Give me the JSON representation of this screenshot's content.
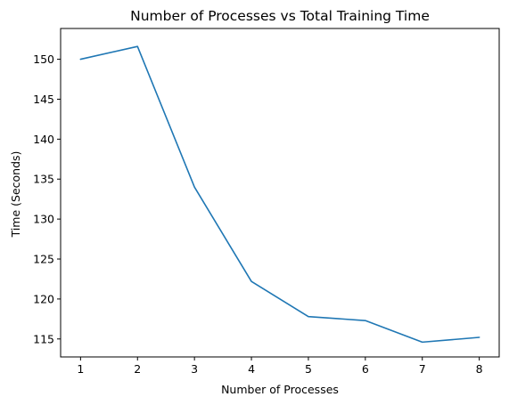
{
  "chart_data": {
    "type": "line",
    "title": "Number of Processes vs Total Training Time",
    "xlabel": "Number of Processes",
    "ylabel": "Time (Seconds)",
    "x": [
      1,
      2,
      3,
      4,
      5,
      6,
      7,
      8
    ],
    "series": [
      {
        "values": [
          150.0,
          151.6,
          134.0,
          122.2,
          117.8,
          117.3,
          114.6,
          115.2
        ],
        "color": "#1f77b4"
      }
    ],
    "xlim": [
      0.65,
      8.35
    ],
    "ylim": [
      112.75,
      153.85
    ],
    "xticks": [
      1,
      2,
      3,
      4,
      5,
      6,
      7,
      8
    ],
    "yticks": [
      115,
      120,
      125,
      130,
      135,
      140,
      145,
      150
    ],
    "grid": false
  }
}
